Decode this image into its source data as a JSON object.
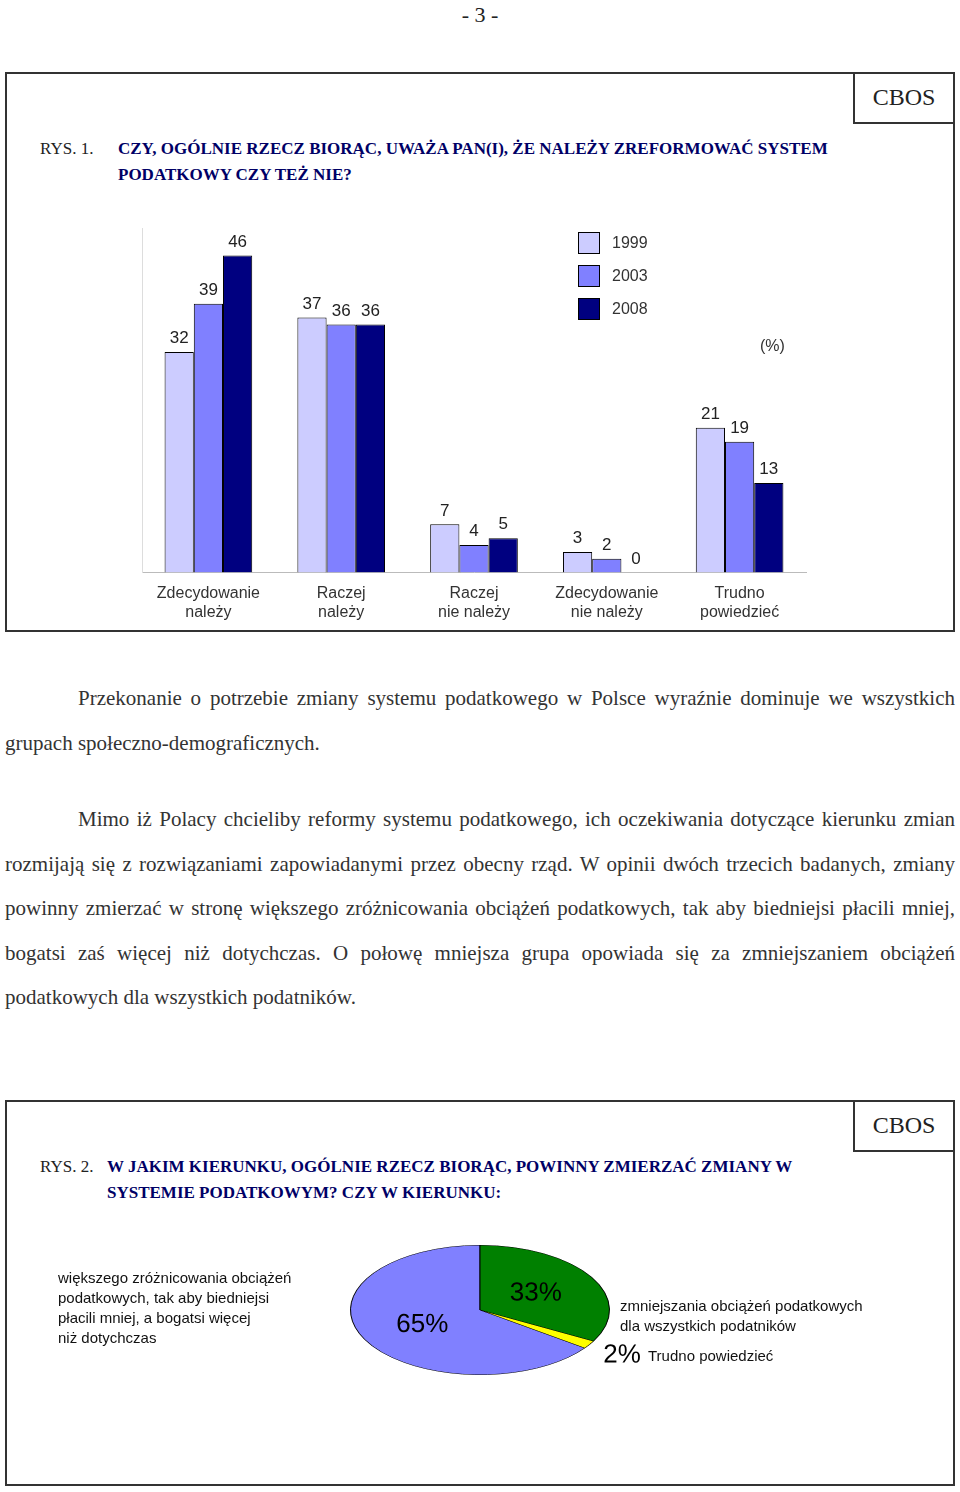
{
  "header": "- 3 -",
  "chart_data": [
    {
      "type": "bar",
      "source": "CBOS",
      "figure_label": "RYS. 1.",
      "title": "CZY, OGÓLNIE RZECZ BIORĄC, UWAŻA PAN(I), ŻE NALEŻY ZREFORMOWAĆ SYSTEM PODATKOWY CZY TEŻ NIE?",
      "annotation": "(%)",
      "categories": [
        [
          "Zdecydowanie",
          "należy"
        ],
        [
          "Raczej",
          "należy"
        ],
        [
          "Raczej",
          "nie należy"
        ],
        [
          "Zdecydowanie",
          "nie należy"
        ],
        [
          "Trudno",
          "powiedzieć"
        ]
      ],
      "series": [
        {
          "name": "1999",
          "color": "#ccccff",
          "values": [
            32,
            37,
            7,
            3,
            21
          ]
        },
        {
          "name": "2003",
          "color": "#8080ff",
          "values": [
            39,
            36,
            4,
            2,
            19
          ]
        },
        {
          "name": "2008",
          "color": "#000080",
          "values": [
            46,
            36,
            5,
            0,
            13
          ]
        }
      ],
      "ylim": [
        0,
        50
      ],
      "tick_labels": "x",
      "grid": false,
      "legend": "top",
      "data_labels": true
    },
    {
      "type": "pie",
      "source": "CBOS",
      "figure_label": "RYS. 2.",
      "title": "W JAKIM KIERUNKU, OGÓLNIE RZECZ BIORĄC, POWINNY ZMIERZAĆ ZMIANY W SYSTEMIE PODATKOWYM? CZY W KIERUNKU:",
      "categories": [
        [
          "większego zróżnicowania obciążeń",
          "podatkowych, tak aby biedniejsi",
          "płacili mniej, a bogatsi więcej",
          "niż dotychczas"
        ],
        [
          "zmniejszania obciążeń podatkowych",
          "dla wszystkich podatników"
        ],
        [
          "Trudno powiedzieć"
        ]
      ],
      "values": [
        65,
        33,
        2
      ],
      "value_labels": [
        "65%",
        "33%",
        "2%"
      ],
      "colors": [
        "#8080ff",
        "#008000",
        "#ffff00"
      ],
      "data_labels": true
    }
  ],
  "paragraphs": [
    "Przekonanie o potrzebie zmiany systemu podatkowego w Polsce wyraźnie dominuje we wszystkich grupach społeczno-demograficznych.",
    "Mimo iż Polacy chcieliby reformy systemu podatkowego, ich oczekiwania dotyczące kierunku zmian rozmijają się z rozwiązaniami zapowiadanymi przez obecny rząd. W opinii dwóch trzecich badanych, zmiany powinny zmierzać w stronę większego zróżnicowania obciążeń podatkowych, tak aby biedniejsi płacili mniej, bogatsi zaś więcej niż dotychczas. O połowę mniejsza grupa opowiada się za zmniejszaniem obciążeń podatkowych dla wszystkich podatników."
  ]
}
